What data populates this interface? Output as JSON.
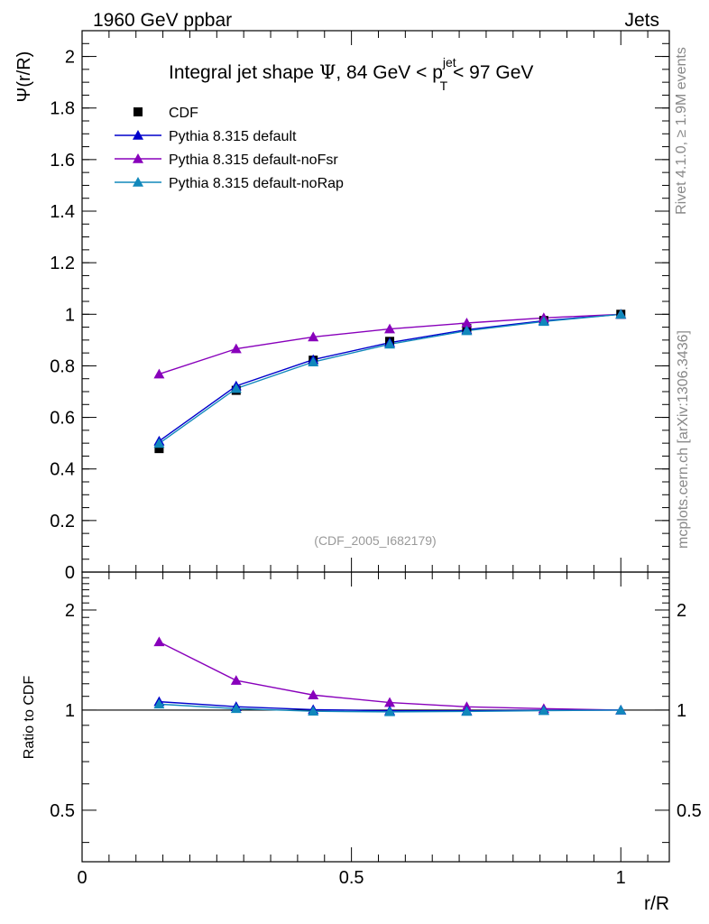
{
  "header": {
    "left": "1960 GeV ppbar",
    "right": "Jets"
  },
  "side_labels": {
    "rivet": "Rivet 4.1.0, ≥ 1.9M events",
    "mcplots": "mcplots.cern.ch [arXiv:1306.3436]"
  },
  "watermark": "(CDF_2005_I682179)",
  "colors": {
    "cdf": "#000000",
    "default": "#0000cc",
    "nofsr": "#8800bb",
    "norap": "#1188bb"
  },
  "chart_data": [
    {
      "type": "line",
      "panel": "main",
      "title_parts": {
        "prefix": "Integral jet shape ",
        "psi": "Ψ",
        "range_prefix": ", 84 GeV < p",
        "sup": "jet",
        "sub": "T",
        "range_suffix": " < 97 GeV"
      },
      "ylabel": "Ψ(r/R)",
      "xlim": [
        0,
        1.09
      ],
      "ylim": [
        0,
        2.1
      ],
      "yticks": [
        {
          "v": 0,
          "label": "0"
        },
        {
          "v": 0.2,
          "label": "0.2"
        },
        {
          "v": 0.4,
          "label": "0.4"
        },
        {
          "v": 0.6,
          "label": "0.6"
        },
        {
          "v": 0.8,
          "label": "0.8"
        },
        {
          "v": 1.0,
          "label": "1"
        },
        {
          "v": 1.2,
          "label": "1.2"
        },
        {
          "v": 1.4,
          "label": "1.4"
        },
        {
          "v": 1.6,
          "label": "1.6"
        },
        {
          "v": 1.8,
          "label": "1.8"
        },
        {
          "v": 2.0,
          "label": "2"
        }
      ],
      "x": [
        0.143,
        0.286,
        0.429,
        0.571,
        0.714,
        0.857,
        1.0
      ],
      "series": [
        {
          "name": "CDF",
          "key": "cdf",
          "marker": "square",
          "line": false,
          "values": [
            0.479,
            0.705,
            0.822,
            0.895,
            0.945,
            0.976,
            1.0
          ]
        },
        {
          "name": "Pythia 8.315 default",
          "key": "default",
          "marker": "triangle",
          "line": true,
          "values": [
            0.508,
            0.722,
            0.824,
            0.89,
            0.94,
            0.975,
            1.0
          ]
        },
        {
          "name": "Pythia 8.315 default-noFsr",
          "key": "nofsr",
          "marker": "triangle",
          "line": true,
          "values": [
            0.768,
            0.866,
            0.912,
            0.943,
            0.966,
            0.986,
            1.0
          ]
        },
        {
          "name": "Pythia 8.315 default-noRap",
          "key": "norap",
          "marker": "triangle",
          "line": true,
          "values": [
            0.499,
            0.712,
            0.815,
            0.884,
            0.936,
            0.972,
            1.0
          ]
        }
      ]
    },
    {
      "type": "line",
      "panel": "ratio",
      "ylabel": "Ratio to CDF",
      "xlabel": "r/R",
      "yscale": "log",
      "xlim": [
        0,
        1.09
      ],
      "ylim": [
        0.35,
        2.6
      ],
      "yticks": [
        {
          "v": 0.5,
          "label": "0.5"
        },
        {
          "v": 1,
          "label": "1"
        },
        {
          "v": 2,
          "label": "2"
        }
      ],
      "xticks": [
        {
          "v": 0,
          "label": "0"
        },
        {
          "v": 0.5,
          "label": "0.5"
        },
        {
          "v": 1,
          "label": "1"
        }
      ],
      "reference": 1.0,
      "x": [
        0.143,
        0.286,
        0.429,
        0.571,
        0.714,
        0.857,
        1.0
      ],
      "series": [
        {
          "name": "Pythia 8.315 default-noFsr",
          "key": "nofsr",
          "values": [
            1.604,
            1.228,
            1.11,
            1.054,
            1.023,
            1.01,
            1.0
          ]
        },
        {
          "name": "Pythia 8.315 default",
          "key": "default",
          "values": [
            1.06,
            1.024,
            1.003,
            0.995,
            0.995,
            0.999,
            1.0
          ]
        },
        {
          "name": "Pythia 8.315 default-noRap",
          "key": "norap",
          "values": [
            1.042,
            1.01,
            0.992,
            0.988,
            0.991,
            0.996,
            1.0
          ]
        }
      ]
    }
  ]
}
